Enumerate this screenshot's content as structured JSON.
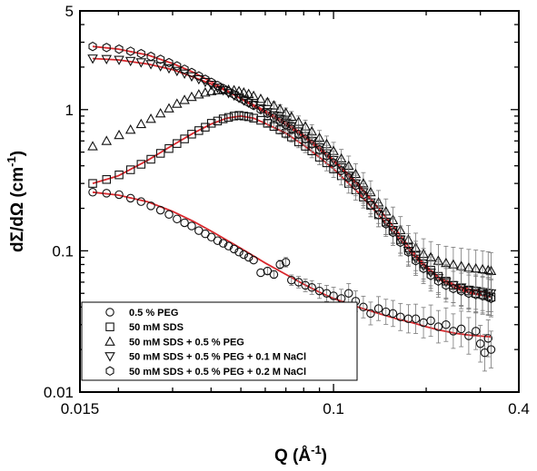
{
  "chart_data": {
    "type": "scatter",
    "title": "",
    "xlabel": {
      "prefix": "Q (",
      "unit": "Å",
      "sup": "-1",
      "suffix": ")"
    },
    "ylabel": {
      "main": "dΣ/dΩ (cm",
      "sup": "-1",
      "suffix": ")"
    },
    "xscale": "log",
    "yscale": "log",
    "xlim": [
      0.015,
      0.4
    ],
    "ylim": [
      0.01,
      5
    ],
    "xticks": [
      {
        "value": 0.015,
        "label": "0.015"
      },
      {
        "value": 0.1,
        "label": "0.1"
      },
      {
        "value": 0.4,
        "label": "0.4"
      }
    ],
    "yticks": [
      {
        "value": 0.01,
        "label": "0.01"
      },
      {
        "value": 0.1,
        "label": "0.1"
      },
      {
        "value": 1,
        "label": "1"
      },
      {
        "value": 5,
        "label": "5"
      }
    ],
    "grid": false,
    "legend_position": "bottom-left",
    "fit_color": "#d9282d",
    "series": [
      {
        "name": "0.5 % PEG",
        "marker": "circle",
        "x": [
          0.0165,
          0.0183,
          0.0201,
          0.0219,
          0.0237,
          0.0255,
          0.0274,
          0.0292,
          0.031,
          0.0328,
          0.0346,
          0.0365,
          0.0383,
          0.0401,
          0.042,
          0.0438,
          0.0456,
          0.0475,
          0.0493,
          0.0511,
          0.053,
          0.055,
          0.058,
          0.061,
          0.064,
          0.067,
          0.07,
          0.073,
          0.077,
          0.081,
          0.085,
          0.09,
          0.095,
          0.1,
          0.106,
          0.112,
          0.118,
          0.125,
          0.132,
          0.14,
          0.148,
          0.156,
          0.165,
          0.175,
          0.185,
          0.196,
          0.207,
          0.219,
          0.232,
          0.245,
          0.26,
          0.275,
          0.29,
          0.3,
          0.31,
          0.318,
          0.325
        ],
        "y": [
          0.26,
          0.256,
          0.25,
          0.236,
          0.223,
          0.208,
          0.194,
          0.181,
          0.168,
          0.158,
          0.15,
          0.139,
          0.132,
          0.125,
          0.118,
          0.113,
          0.108,
          0.103,
          0.098,
          0.094,
          0.09,
          0.086,
          0.07,
          0.072,
          0.068,
          0.08,
          0.083,
          0.062,
          0.06,
          0.057,
          0.055,
          0.052,
          0.05,
          0.048,
          0.046,
          0.05,
          0.044,
          0.04,
          0.036,
          0.039,
          0.037,
          0.036,
          0.034,
          0.033,
          0.033,
          0.031,
          0.032,
          0.029,
          0.03,
          0.027,
          0.028,
          0.025,
          0.027,
          0.022,
          0.019,
          0.024,
          0.02
        ]
      },
      {
        "name": "50 mM SDS",
        "marker": "square",
        "x": [
          0.0165,
          0.0183,
          0.0201,
          0.0219,
          0.0237,
          0.0255,
          0.0274,
          0.0292,
          0.031,
          0.0328,
          0.0346,
          0.0365,
          0.0383,
          0.0401,
          0.042,
          0.0438,
          0.0456,
          0.0475,
          0.0493,
          0.0511,
          0.053,
          0.055,
          0.058,
          0.061,
          0.064,
          0.067,
          0.07,
          0.073,
          0.077,
          0.081,
          0.085,
          0.09,
          0.095,
          0.1,
          0.106,
          0.112,
          0.118,
          0.125,
          0.132,
          0.14,
          0.148,
          0.156,
          0.165,
          0.175,
          0.185,
          0.196,
          0.207,
          0.219,
          0.232,
          0.245,
          0.26,
          0.275,
          0.29,
          0.305,
          0.318,
          0.325
        ],
        "y": [
          0.3,
          0.32,
          0.345,
          0.375,
          0.41,
          0.445,
          0.49,
          0.53,
          0.575,
          0.62,
          0.67,
          0.71,
          0.75,
          0.8,
          0.83,
          0.86,
          0.88,
          0.9,
          0.91,
          0.9,
          0.89,
          0.87,
          0.84,
          0.8,
          0.76,
          0.72,
          0.68,
          0.64,
          0.59,
          0.55,
          0.51,
          0.46,
          0.42,
          0.38,
          0.34,
          0.3,
          0.27,
          0.24,
          0.21,
          0.18,
          0.16,
          0.14,
          0.12,
          0.105,
          0.092,
          0.081,
          0.073,
          0.066,
          0.061,
          0.057,
          0.054,
          0.052,
          0.05,
          0.049,
          0.048,
          0.047
        ]
      },
      {
        "name": "50 mM SDS + 0.5 % PEG",
        "marker": "triangle-up",
        "x": [
          0.0165,
          0.0183,
          0.0201,
          0.0219,
          0.0237,
          0.0255,
          0.0274,
          0.0292,
          0.031,
          0.0328,
          0.0346,
          0.0365,
          0.0383,
          0.0401,
          0.042,
          0.0438,
          0.0456,
          0.0475,
          0.0493,
          0.0511,
          0.053,
          0.055,
          0.058,
          0.061,
          0.064,
          0.067,
          0.07,
          0.073,
          0.077,
          0.081,
          0.085,
          0.09,
          0.095,
          0.1,
          0.106,
          0.112,
          0.118,
          0.125,
          0.132,
          0.14,
          0.148,
          0.156,
          0.165,
          0.175,
          0.185,
          0.196,
          0.207,
          0.219,
          0.232,
          0.245,
          0.26,
          0.275,
          0.29,
          0.305,
          0.318,
          0.325
        ],
        "y": [
          0.55,
          0.6,
          0.66,
          0.72,
          0.79,
          0.86,
          0.94,
          1.02,
          1.1,
          1.17,
          1.23,
          1.28,
          1.32,
          1.35,
          1.37,
          1.38,
          1.38,
          1.37,
          1.35,
          1.32,
          1.29,
          1.25,
          1.19,
          1.13,
          1.07,
          1.01,
          0.95,
          0.89,
          0.82,
          0.76,
          0.7,
          0.63,
          0.57,
          0.51,
          0.45,
          0.4,
          0.35,
          0.3,
          0.26,
          0.22,
          0.19,
          0.165,
          0.14,
          0.12,
          0.105,
          0.095,
          0.09,
          0.085,
          0.082,
          0.08,
          0.078,
          0.076,
          0.075,
          0.074,
          0.073,
          0.072
        ]
      },
      {
        "name": "50 mM SDS + 0.5 % PEG + 0.1 M NaCl",
        "marker": "triangle-down",
        "x": [
          0.0165,
          0.0183,
          0.0201,
          0.0219,
          0.0237,
          0.0255,
          0.0274,
          0.0292,
          0.031,
          0.0328,
          0.0346,
          0.0365,
          0.0383,
          0.0401,
          0.042,
          0.0438,
          0.0456,
          0.0475,
          0.0493,
          0.0511,
          0.053,
          0.055,
          0.058,
          0.061,
          0.064,
          0.067,
          0.07,
          0.073,
          0.077,
          0.081,
          0.085,
          0.09,
          0.095,
          0.1,
          0.106,
          0.112,
          0.118,
          0.125,
          0.132,
          0.14,
          0.148,
          0.156,
          0.165,
          0.175,
          0.185,
          0.196,
          0.207,
          0.219,
          0.232,
          0.245,
          0.26,
          0.275,
          0.29,
          0.305,
          0.318,
          0.325
        ],
        "y": [
          2.3,
          2.28,
          2.25,
          2.21,
          2.16,
          2.1,
          2.03,
          1.96,
          1.88,
          1.8,
          1.72,
          1.64,
          1.57,
          1.5,
          1.43,
          1.37,
          1.31,
          1.26,
          1.21,
          1.16,
          1.12,
          1.08,
          1.02,
          0.96,
          0.91,
          0.86,
          0.81,
          0.76,
          0.7,
          0.65,
          0.6,
          0.54,
          0.49,
          0.44,
          0.39,
          0.34,
          0.3,
          0.26,
          0.22,
          0.19,
          0.16,
          0.14,
          0.12,
          0.1,
          0.088,
          0.078,
          0.07,
          0.064,
          0.06,
          0.057,
          0.055,
          0.053,
          0.052,
          0.051,
          0.05,
          0.05
        ]
      },
      {
        "name": "50 mM SDS + 0.5 % PEG + 0.2 M NaCl",
        "marker": "hexagon",
        "x": [
          0.0165,
          0.0183,
          0.0201,
          0.0219,
          0.0237,
          0.0255,
          0.0274,
          0.0292,
          0.031,
          0.0328,
          0.0346,
          0.0365,
          0.0383,
          0.0401,
          0.042,
          0.0438,
          0.0456,
          0.0475,
          0.0493,
          0.0511,
          0.053,
          0.055,
          0.058,
          0.061,
          0.064,
          0.067,
          0.07,
          0.073,
          0.077,
          0.081,
          0.085,
          0.09,
          0.095,
          0.1,
          0.106,
          0.112,
          0.118,
          0.125,
          0.132,
          0.14,
          0.148,
          0.156,
          0.165,
          0.175,
          0.185,
          0.196,
          0.207,
          0.219,
          0.232,
          0.245,
          0.26,
          0.275,
          0.29,
          0.305,
          0.318,
          0.325
        ],
        "y": [
          2.8,
          2.75,
          2.68,
          2.59,
          2.49,
          2.38,
          2.27,
          2.15,
          2.04,
          1.93,
          1.83,
          1.73,
          1.64,
          1.56,
          1.48,
          1.41,
          1.34,
          1.28,
          1.22,
          1.17,
          1.12,
          1.07,
          1.0,
          0.94,
          0.88,
          0.83,
          0.78,
          0.73,
          0.67,
          0.62,
          0.57,
          0.52,
          0.47,
          0.42,
          0.37,
          0.33,
          0.29,
          0.25,
          0.21,
          0.18,
          0.155,
          0.135,
          0.115,
          0.098,
          0.085,
          0.075,
          0.067,
          0.061,
          0.057,
          0.054,
          0.052,
          0.05,
          0.049,
          0.048,
          0.047,
          0.046
        ]
      }
    ],
    "fits": [
      {
        "name": "0.5 % PEG",
        "x": [
          0.0165,
          0.02,
          0.025,
          0.03,
          0.035,
          0.04,
          0.045,
          0.05,
          0.06,
          0.07,
          0.08,
          0.09,
          0.1,
          0.12,
          0.14,
          0.16,
          0.18,
          0.2,
          0.22,
          0.25,
          0.28,
          0.31,
          0.325
        ],
        "y": [
          0.26,
          0.248,
          0.222,
          0.19,
          0.162,
          0.138,
          0.119,
          0.104,
          0.082,
          0.068,
          0.058,
          0.051,
          0.046,
          0.04,
          0.036,
          0.033,
          0.031,
          0.029,
          0.0275,
          0.026,
          0.0252,
          0.0248,
          0.0246
        ]
      },
      {
        "name": "50 mM SDS",
        "x": [
          0.0165,
          0.02,
          0.025,
          0.03,
          0.035,
          0.04,
          0.045,
          0.05,
          0.055,
          0.06,
          0.07,
          0.08,
          0.09,
          0.1,
          0.12,
          0.14,
          0.16,
          0.18,
          0.2,
          0.22,
          0.25,
          0.28,
          0.31,
          0.325
        ],
        "y": [
          0.3,
          0.34,
          0.44,
          0.56,
          0.68,
          0.79,
          0.87,
          0.9,
          0.87,
          0.8,
          0.68,
          0.56,
          0.46,
          0.38,
          0.26,
          0.18,
          0.13,
          0.095,
          0.075,
          0.064,
          0.056,
          0.051,
          0.048,
          0.047
        ]
      },
      {
        "name": "50 mM SDS + 0.5 % PEG + 0.1 M NaCl",
        "x": [
          0.0165,
          0.02,
          0.025,
          0.03,
          0.035,
          0.04,
          0.045,
          0.05,
          0.06,
          0.07,
          0.08,
          0.09,
          0.1,
          0.12,
          0.14,
          0.16,
          0.18,
          0.2,
          0.22,
          0.25,
          0.28,
          0.31,
          0.325
        ],
        "y": [
          2.3,
          2.25,
          2.1,
          1.92,
          1.7,
          1.52,
          1.35,
          1.2,
          0.98,
          0.81,
          0.66,
          0.54,
          0.44,
          0.3,
          0.2,
          0.14,
          0.1,
          0.078,
          0.065,
          0.057,
          0.053,
          0.051,
          0.05
        ]
      },
      {
        "name": "50 mM SDS + 0.5 % PEG + 0.2 M NaCl",
        "x": [
          0.0165,
          0.02,
          0.025,
          0.03,
          0.035,
          0.04,
          0.045,
          0.05,
          0.06,
          0.07,
          0.08,
          0.09,
          0.1,
          0.12,
          0.14,
          0.16,
          0.18,
          0.2,
          0.22,
          0.25,
          0.28,
          0.31,
          0.325
        ],
        "y": [
          2.8,
          2.68,
          2.43,
          2.12,
          1.84,
          1.58,
          1.37,
          1.19,
          0.95,
          0.78,
          0.64,
          0.52,
          0.43,
          0.29,
          0.2,
          0.14,
          0.1,
          0.077,
          0.063,
          0.054,
          0.05,
          0.048,
          0.047
        ]
      }
    ]
  }
}
